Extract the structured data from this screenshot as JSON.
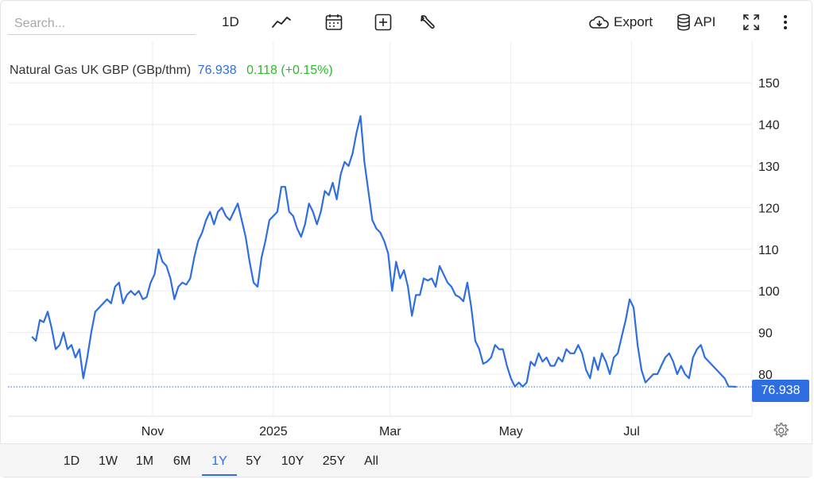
{
  "search": {
    "placeholder": "Search..."
  },
  "toolbar": {
    "period_label": "1D",
    "icons": [
      "line-chart-icon",
      "calendar-icon",
      "plus-square-icon",
      "wrench-icon",
      "cloud-download-icon",
      "database-icon",
      "fullscreen-icon",
      "more-vertical-icon"
    ],
    "export_label": "Export",
    "api_label": "API"
  },
  "header": {
    "name": "Natural Gas UK GBP (GBp/thm)",
    "price": "76.938",
    "change": "0.118 (+0.15%)"
  },
  "price_tag": "76.938",
  "range_buttons": [
    "1D",
    "1W",
    "1M",
    "6M",
    "1Y",
    "5Y",
    "10Y",
    "25Y",
    "All"
  ],
  "active_range": "1Y",
  "colors": {
    "line": "#2f6ee0",
    "accent": "#2f6ee0",
    "change_up": "#2eb82e",
    "grid": "#ececec"
  },
  "chart_data": {
    "type": "line",
    "title": "Natural Gas UK GBP (GBp/thm)",
    "xlabel": "",
    "ylabel": "",
    "x_range": [
      "2024-09-01",
      "2025-08-26"
    ],
    "ylim": [
      70,
      155
    ],
    "y_ticks": [
      80,
      90,
      100,
      110,
      120,
      130,
      140,
      150
    ],
    "x_ticks": [
      {
        "label": "Nov",
        "date": "2024-11-01"
      },
      {
        "label": "2025",
        "date": "2025-01-01"
      },
      {
        "label": "Mar",
        "date": "2025-03-01"
      },
      {
        "label": "May",
        "date": "2025-05-01"
      },
      {
        "label": "Jul",
        "date": "2025-07-01"
      }
    ],
    "grid": true,
    "last_value": 76.938,
    "series": [
      {
        "values": [
          [
            "2024-09-01",
            89
          ],
          [
            "2024-09-03",
            88
          ],
          [
            "2024-09-05",
            93
          ],
          [
            "2024-09-07",
            92.5
          ],
          [
            "2024-09-09",
            95
          ],
          [
            "2024-09-11",
            91
          ],
          [
            "2024-09-13",
            86
          ],
          [
            "2024-09-15",
            87
          ],
          [
            "2024-09-17",
            90
          ],
          [
            "2024-09-19",
            86
          ],
          [
            "2024-09-21",
            87
          ],
          [
            "2024-09-23",
            84
          ],
          [
            "2024-09-25",
            86
          ],
          [
            "2024-09-27",
            79
          ],
          [
            "2024-09-29",
            84
          ],
          [
            "2024-10-01",
            90
          ],
          [
            "2024-10-03",
            95
          ],
          [
            "2024-10-05",
            96
          ],
          [
            "2024-10-07",
            97
          ],
          [
            "2024-10-09",
            98
          ],
          [
            "2024-10-11",
            97
          ],
          [
            "2024-10-13",
            101
          ],
          [
            "2024-10-15",
            102
          ],
          [
            "2024-10-17",
            97
          ],
          [
            "2024-10-19",
            99
          ],
          [
            "2024-10-21",
            100
          ],
          [
            "2024-10-23",
            99
          ],
          [
            "2024-10-25",
            100
          ],
          [
            "2024-10-27",
            98
          ],
          [
            "2024-10-29",
            98.5
          ],
          [
            "2024-10-31",
            102
          ],
          [
            "2024-11-02",
            104
          ],
          [
            "2024-11-04",
            110
          ],
          [
            "2024-11-06",
            107
          ],
          [
            "2024-11-08",
            106
          ],
          [
            "2024-11-10",
            103
          ],
          [
            "2024-11-12",
            98
          ],
          [
            "2024-11-14",
            101
          ],
          [
            "2024-11-16",
            102
          ],
          [
            "2024-11-18",
            101.5
          ],
          [
            "2024-11-20",
            103
          ],
          [
            "2024-11-22",
            108
          ],
          [
            "2024-11-24",
            112
          ],
          [
            "2024-11-26",
            114
          ],
          [
            "2024-11-28",
            117
          ],
          [
            "2024-11-30",
            119
          ],
          [
            "2024-12-02",
            116
          ],
          [
            "2024-12-04",
            119
          ],
          [
            "2024-12-06",
            120
          ],
          [
            "2024-12-08",
            118
          ],
          [
            "2024-12-10",
            117
          ],
          [
            "2024-12-12",
            119
          ],
          [
            "2024-12-14",
            121
          ],
          [
            "2024-12-16",
            117
          ],
          [
            "2024-12-18",
            113
          ],
          [
            "2024-12-20",
            107
          ],
          [
            "2024-12-22",
            102
          ],
          [
            "2024-12-24",
            101
          ],
          [
            "2024-12-26",
            108
          ],
          [
            "2024-12-28",
            112
          ],
          [
            "2024-12-30",
            117
          ],
          [
            "2025-01-01",
            118
          ],
          [
            "2025-01-03",
            119
          ],
          [
            "2025-01-05",
            125
          ],
          [
            "2025-01-07",
            125
          ],
          [
            "2025-01-09",
            119
          ],
          [
            "2025-01-11",
            118
          ],
          [
            "2025-01-13",
            115
          ],
          [
            "2025-01-15",
            113
          ],
          [
            "2025-01-17",
            116
          ],
          [
            "2025-01-19",
            121
          ],
          [
            "2025-01-21",
            119
          ],
          [
            "2025-01-23",
            116
          ],
          [
            "2025-01-25",
            119
          ],
          [
            "2025-01-27",
            124
          ],
          [
            "2025-01-29",
            123
          ],
          [
            "2025-01-31",
            126
          ],
          [
            "2025-02-02",
            122
          ],
          [
            "2025-02-04",
            128
          ],
          [
            "2025-02-06",
            131
          ],
          [
            "2025-02-08",
            130
          ],
          [
            "2025-02-10",
            133
          ],
          [
            "2025-02-12",
            138
          ],
          [
            "2025-02-14",
            142
          ],
          [
            "2025-02-16",
            131
          ],
          [
            "2025-02-18",
            124
          ],
          [
            "2025-02-20",
            117
          ],
          [
            "2025-02-22",
            115
          ],
          [
            "2025-02-24",
            114
          ],
          [
            "2025-02-26",
            112
          ],
          [
            "2025-02-28",
            109
          ],
          [
            "2025-03-02",
            100
          ],
          [
            "2025-03-04",
            107
          ],
          [
            "2025-03-06",
            103
          ],
          [
            "2025-03-08",
            105
          ],
          [
            "2025-03-10",
            101
          ],
          [
            "2025-03-12",
            94
          ],
          [
            "2025-03-14",
            99
          ],
          [
            "2025-03-16",
            99
          ],
          [
            "2025-03-18",
            103
          ],
          [
            "2025-03-20",
            102.5
          ],
          [
            "2025-03-22",
            103
          ],
          [
            "2025-03-24",
            101
          ],
          [
            "2025-03-26",
            106
          ],
          [
            "2025-03-28",
            104
          ],
          [
            "2025-03-30",
            102
          ],
          [
            "2025-04-01",
            101
          ],
          [
            "2025-04-03",
            99
          ],
          [
            "2025-04-05",
            98.5
          ],
          [
            "2025-04-07",
            97.5
          ],
          [
            "2025-04-09",
            102
          ],
          [
            "2025-04-11",
            96
          ],
          [
            "2025-04-13",
            88
          ],
          [
            "2025-04-15",
            86
          ],
          [
            "2025-04-17",
            82.5
          ],
          [
            "2025-04-19",
            83
          ],
          [
            "2025-04-21",
            84
          ],
          [
            "2025-04-23",
            87
          ],
          [
            "2025-04-25",
            86
          ],
          [
            "2025-04-27",
            86
          ],
          [
            "2025-04-29",
            82
          ],
          [
            "2025-05-01",
            79
          ],
          [
            "2025-05-03",
            77
          ],
          [
            "2025-05-05",
            78
          ],
          [
            "2025-05-07",
            77
          ],
          [
            "2025-05-09",
            78
          ],
          [
            "2025-05-11",
            83
          ],
          [
            "2025-05-13",
            82
          ],
          [
            "2025-05-15",
            85
          ],
          [
            "2025-05-17",
            83
          ],
          [
            "2025-05-19",
            84
          ],
          [
            "2025-05-21",
            82
          ],
          [
            "2025-05-23",
            82
          ],
          [
            "2025-05-25",
            84
          ],
          [
            "2025-05-27",
            83
          ],
          [
            "2025-05-29",
            86
          ],
          [
            "2025-05-31",
            85
          ],
          [
            "2025-06-02",
            85
          ],
          [
            "2025-06-04",
            87
          ],
          [
            "2025-06-06",
            85
          ],
          [
            "2025-06-08",
            81
          ],
          [
            "2025-06-10",
            79
          ],
          [
            "2025-06-12",
            84
          ],
          [
            "2025-06-14",
            81
          ],
          [
            "2025-06-16",
            85
          ],
          [
            "2025-06-18",
            83
          ],
          [
            "2025-06-20",
            80
          ],
          [
            "2025-06-22",
            84
          ],
          [
            "2025-06-24",
            85
          ],
          [
            "2025-06-26",
            89
          ],
          [
            "2025-06-28",
            93
          ],
          [
            "2025-06-30",
            98
          ],
          [
            "2025-07-02",
            96
          ],
          [
            "2025-07-04",
            87
          ],
          [
            "2025-07-06",
            81
          ],
          [
            "2025-07-08",
            78
          ],
          [
            "2025-07-10",
            79
          ],
          [
            "2025-07-12",
            80
          ],
          [
            "2025-07-14",
            80
          ],
          [
            "2025-07-16",
            82
          ],
          [
            "2025-07-18",
            84
          ],
          [
            "2025-07-20",
            85
          ],
          [
            "2025-07-22",
            83
          ],
          [
            "2025-07-24",
            80
          ],
          [
            "2025-07-26",
            82
          ],
          [
            "2025-07-28",
            80
          ],
          [
            "2025-07-30",
            79
          ],
          [
            "2025-08-01",
            84
          ],
          [
            "2025-08-03",
            86
          ],
          [
            "2025-08-05",
            87
          ],
          [
            "2025-08-07",
            84
          ],
          [
            "2025-08-09",
            83
          ],
          [
            "2025-08-11",
            82
          ],
          [
            "2025-08-13",
            81
          ],
          [
            "2025-08-15",
            80
          ],
          [
            "2025-08-17",
            79
          ],
          [
            "2025-08-19",
            77
          ],
          [
            "2025-08-21",
            77
          ],
          [
            "2025-08-23",
            76.938
          ]
        ]
      }
    ]
  }
}
